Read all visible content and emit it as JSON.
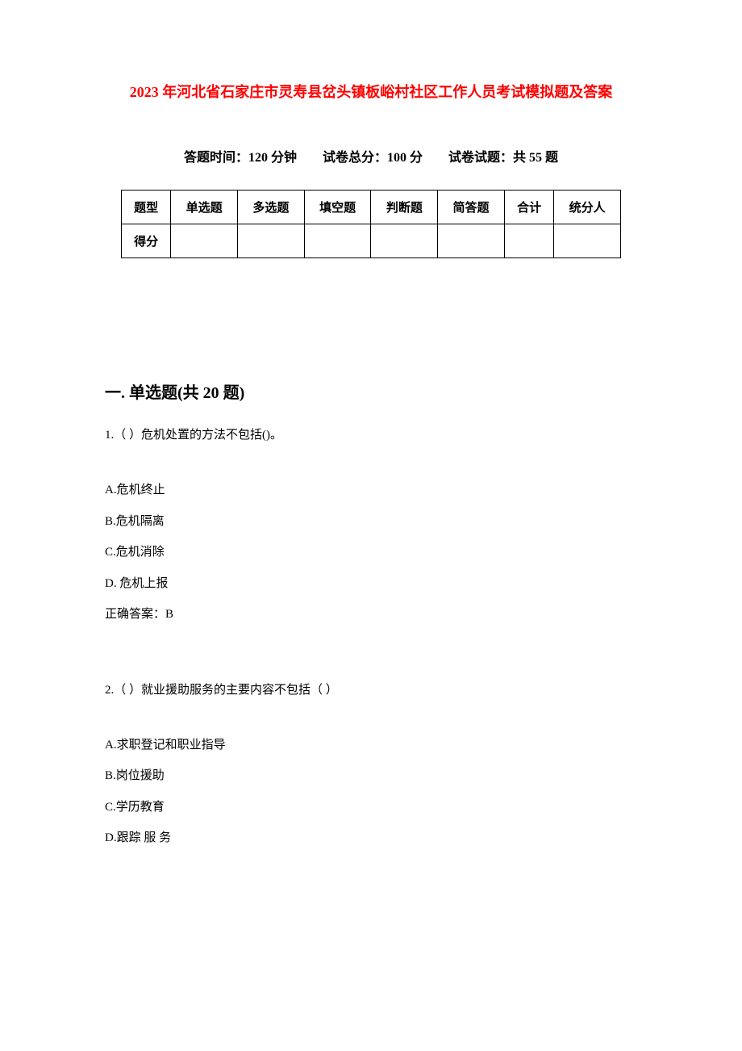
{
  "document": {
    "title": "2023 年河北省石家庄市灵寿县岔头镇板峪村社区工作人员考试模拟题及答案",
    "title_color": "#ff0000",
    "title_fontsize": 18,
    "exam_info": "答题时间：120 分钟　　试卷总分：100 分　　试卷试题：共 55 题",
    "exam_info_fontsize": 16,
    "score_table": {
      "headers": [
        "题型",
        "单选题",
        "多选题",
        "填空题",
        "判断题",
        "简答题",
        "合计",
        "统分人"
      ],
      "row_label": "得分",
      "cells": [
        "",
        "",
        "",
        "",
        "",
        "",
        ""
      ],
      "border_color": "#000000",
      "fontsize": 15
    },
    "section1": {
      "header": "一. 单选题(共 20 题)",
      "fontsize": 20
    },
    "q1": {
      "number": "1.（ ）危机处置的方法不包括()。",
      "options": {
        "a": "A.危机终止",
        "b": "B.危机隔离",
        "c": "C.危机消除",
        "d": "D.  危机上报"
      },
      "answer": "正确答案：B"
    },
    "q2": {
      "number": "2.（ ）就业援助服务的主要内容不包括（ ）",
      "options": {
        "a": "A.求职登记和职业指导",
        "b": "B.岗位援助",
        "c": "C.学历教育",
        "d": "D.跟踪  服 务"
      }
    },
    "body_fontsize": 15,
    "text_color": "#000000",
    "background_color": "#ffffff"
  }
}
